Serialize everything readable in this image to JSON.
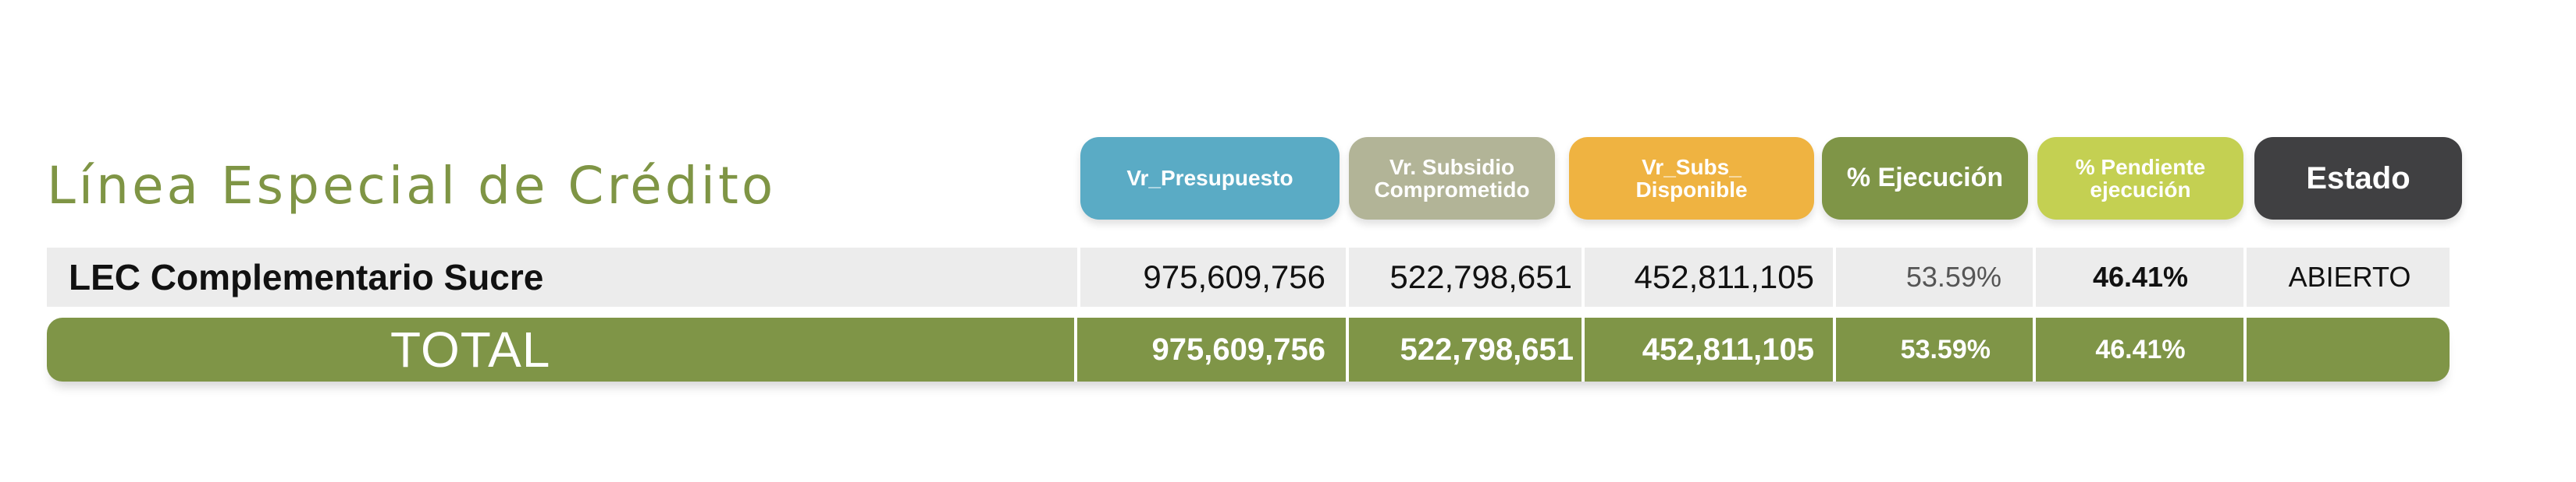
{
  "title": "Línea Especial de Crédito",
  "headers": {
    "vr_presupuesto": [
      "Vr_Presupuesto"
    ],
    "vr_subsidio": [
      "Vr. Subsidio",
      "Comprometido"
    ],
    "vr_subs_disponible": [
      "Vr_Subs_",
      "Disponible"
    ],
    "ejecucion": [
      "% Ejecución"
    ],
    "pendiente": [
      "% Pendiente",
      "ejecución"
    ],
    "estado": [
      "Estado"
    ]
  },
  "header_colors": {
    "vr_presupuesto": "#5aabc5",
    "vr_subsidio": "#b2b497",
    "vr_subs_disponible": "#efb341",
    "ejecucion": "#7f9547",
    "pendiente": "#c4d052",
    "estado": "#404042"
  },
  "rows": [
    {
      "label": "LEC Complementario Sucre",
      "vr_presupuesto": "975,609,756",
      "vr_subsidio": "522,798,651",
      "vr_subs_disponible": "452,811,105",
      "ejecucion": "53.59%",
      "pendiente": "46.41%",
      "estado": "ABIERTO"
    }
  ],
  "total": {
    "label": "TOTAL",
    "vr_presupuesto": "975,609,756",
    "vr_subsidio": "522,798,651",
    "vr_subs_disponible": "452,811,105",
    "ejecucion": "53.59%",
    "pendiente": "46.41%",
    "estado": ""
  }
}
